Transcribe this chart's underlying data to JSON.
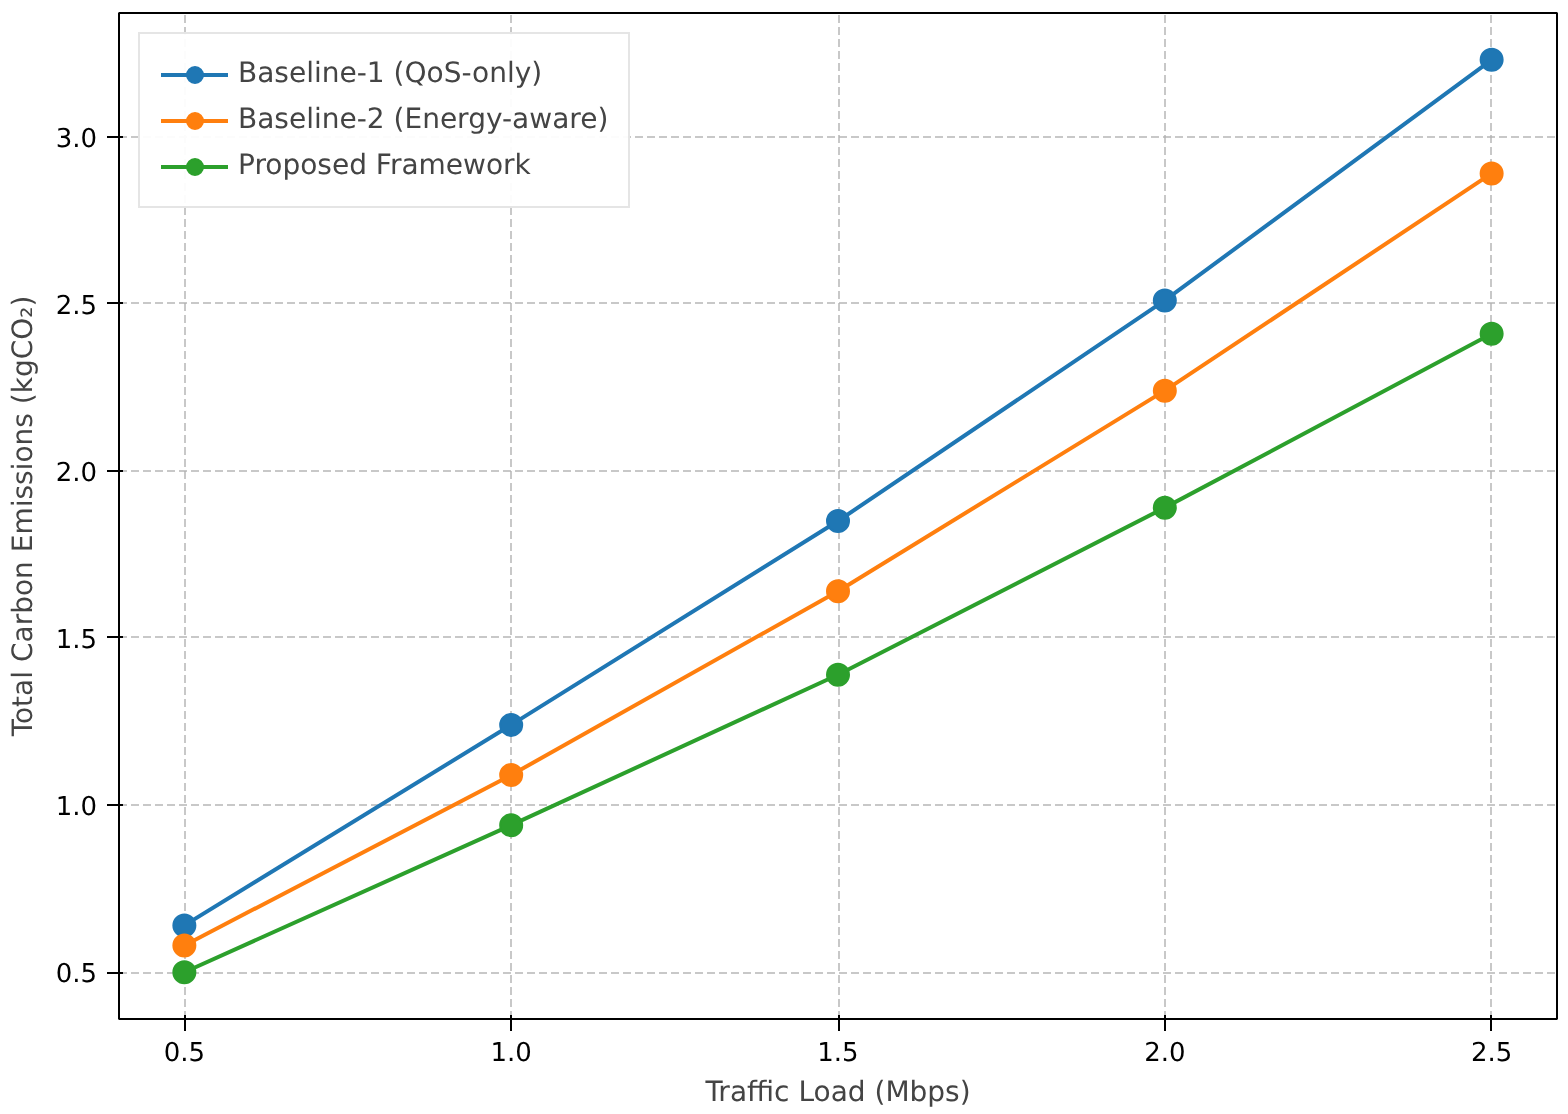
{
  "chart_data": {
    "type": "line",
    "xlabel": "Traffic Load (Mbps)",
    "ylabel": "Total Carbon Emissions (kgCO₂)",
    "x": [
      0.5,
      1.0,
      1.5,
      2.0,
      2.5
    ],
    "series": [
      {
        "name": "Baseline-1 (QoS-only)",
        "color": "#1f77b4",
        "values": [
          0.64,
          1.24,
          1.85,
          2.51,
          3.23
        ]
      },
      {
        "name": "Baseline-2 (Energy-aware)",
        "color": "#ff7f0e",
        "values": [
          0.58,
          1.09,
          1.64,
          2.24,
          2.89
        ]
      },
      {
        "name": "Proposed Framework",
        "color": "#2ca02c",
        "values": [
          0.5,
          0.94,
          1.39,
          1.89,
          2.41
        ]
      }
    ],
    "xlim": [
      0.4,
      2.6
    ],
    "ylim": [
      0.36,
      3.37
    ],
    "xticks": [
      {
        "value": 0.5,
        "label": "0.5"
      },
      {
        "value": 1.0,
        "label": "1.0"
      },
      {
        "value": 1.5,
        "label": "1.5"
      },
      {
        "value": 2.0,
        "label": "2.0"
      },
      {
        "value": 2.5,
        "label": "2.5"
      }
    ],
    "yticks": [
      {
        "value": 0.5,
        "label": "0.5"
      },
      {
        "value": 1.0,
        "label": "1.0"
      },
      {
        "value": 1.5,
        "label": "1.5"
      },
      {
        "value": 2.0,
        "label": "2.0"
      },
      {
        "value": 2.5,
        "label": "2.5"
      },
      {
        "value": 3.0,
        "label": "3.0"
      }
    ],
    "grid": true,
    "legend": "top left",
    "marker": "circle",
    "line_style": "solid"
  }
}
